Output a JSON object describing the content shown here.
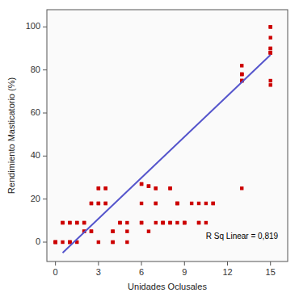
{
  "chart_data": {
    "type": "scatter",
    "xlabel": "Unidades Oclusales",
    "ylabel": "Rendimiento Masticatorio (%)",
    "annotation": "R Sq Linear = 0,819",
    "xlim": [
      -0.6,
      16.2
    ],
    "ylim": [
      -9,
      108
    ],
    "xticks": [
      0,
      3,
      6,
      9,
      12,
      15
    ],
    "yticks": [
      0,
      20,
      40,
      60,
      80,
      100
    ],
    "grid": false,
    "series": [
      {
        "type": "scatter",
        "marker": "square",
        "color": "#cc0000",
        "x": [
          0,
          0,
          0,
          0,
          0.5,
          0.5,
          0.5,
          1,
          1,
          1,
          1,
          1,
          1.5,
          1.5,
          1.5,
          2,
          2,
          2,
          2,
          2.5,
          2.5,
          2.5,
          2.5,
          3,
          3,
          3,
          3,
          3,
          3.5,
          3.5,
          3.5,
          3.5,
          4,
          4,
          4,
          4,
          4.5,
          4.5,
          5,
          5,
          5,
          6,
          6,
          6,
          6,
          6,
          6.5,
          6.5,
          6.5,
          7,
          7,
          7,
          7,
          7,
          7.5,
          7.5,
          7.5,
          8,
          8,
          8,
          8,
          8.5,
          8.5,
          8.5,
          8.5,
          9,
          9,
          9,
          9.5,
          10,
          10,
          10,
          10.5,
          10.5,
          11,
          11,
          13,
          13,
          13,
          13,
          13,
          13,
          13,
          13,
          15,
          15,
          15,
          15,
          15,
          15,
          15,
          15,
          15,
          15
        ],
        "values": [
          0,
          0,
          0,
          0,
          9,
          9,
          0,
          9,
          9,
          0,
          0,
          0,
          9,
          9,
          0,
          9,
          9,
          5,
          5,
          18,
          18,
          5,
          5,
          18,
          18,
          25,
          25,
          0,
          25,
          25,
          18,
          18,
          5,
          5,
          0,
          0,
          9,
          9,
          9,
          5,
          0,
          27,
          27,
          18,
          9,
          9,
          26,
          26,
          5,
          25,
          25,
          9,
          18,
          18,
          9,
          9,
          9,
          25,
          25,
          9,
          9,
          18,
          18,
          18,
          9,
          9,
          9,
          9,
          18,
          9,
          9,
          18,
          18,
          9,
          18,
          18,
          82,
          78,
          78,
          78,
          75,
          75,
          75,
          25,
          100,
          100,
          95,
          90,
          90,
          88,
          88,
          75,
          88,
          73
        ]
      },
      {
        "type": "line",
        "line_style": "solid",
        "color": "#5555cc",
        "x": [
          0.5,
          15.0
        ],
        "values": [
          -5,
          87
        ]
      }
    ]
  }
}
